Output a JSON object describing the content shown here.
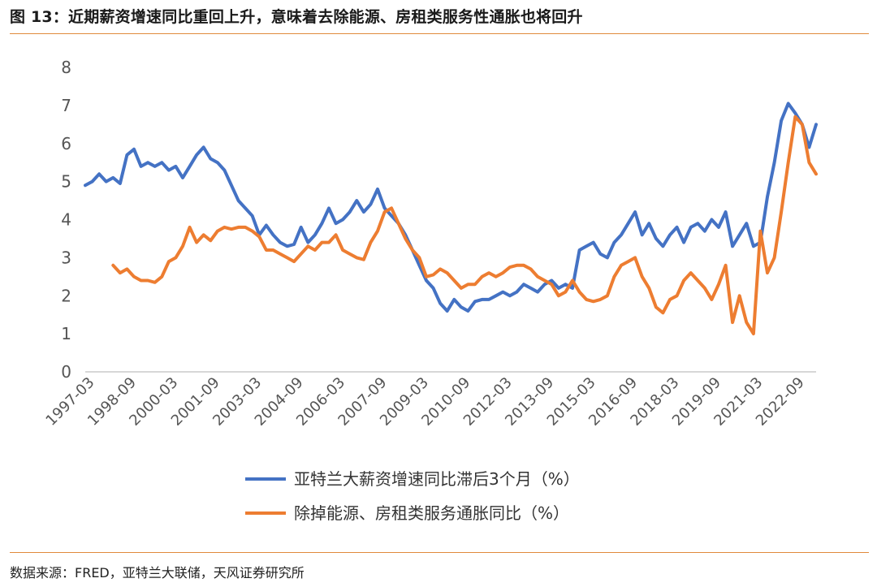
{
  "header": {
    "title": "图 13：近期薪资增速同比重回上升，意味着去除能源、房租类服务性通胀也将回升"
  },
  "footer": {
    "source": "数据来源：FRED，亚特兰大联储，天风证券研究所"
  },
  "chart_data": {
    "type": "line",
    "title": "",
    "xlabel": "",
    "ylabel": "",
    "ylim": [
      0,
      8
    ],
    "yticks": [
      "0",
      "1",
      "2",
      "3",
      "4",
      "5",
      "6",
      "7",
      "8"
    ],
    "x_ticks": [
      "1997-03",
      "1998-09",
      "2000-03",
      "2001-09",
      "2003-03",
      "2004-09",
      "2006-03",
      "2007-09",
      "2009-03",
      "2010-09",
      "2012-03",
      "2013-09",
      "2015-03",
      "2016-09",
      "2018-03",
      "2019-09",
      "2021-03",
      "2022-09"
    ],
    "x_range": [
      "1997-03",
      "2023-06"
    ],
    "grid": false,
    "legend_position": "bottom",
    "series": [
      {
        "name": "亚特兰大薪资增速同比滞后3个月（%）",
        "color": "#4472c4",
        "points": [
          [
            "1997-03",
            4.9
          ],
          [
            "1997-06",
            5.0
          ],
          [
            "1997-09",
            5.2
          ],
          [
            "1997-12",
            5.0
          ],
          [
            "1998-03",
            5.1
          ],
          [
            "1998-06",
            4.95
          ],
          [
            "1998-09",
            5.7
          ],
          [
            "1998-12",
            5.85
          ],
          [
            "1999-03",
            5.4
          ],
          [
            "1999-06",
            5.5
          ],
          [
            "1999-09",
            5.4
          ],
          [
            "1999-12",
            5.5
          ],
          [
            "2000-03",
            5.3
          ],
          [
            "2000-06",
            5.4
          ],
          [
            "2000-09",
            5.1
          ],
          [
            "2000-12",
            5.4
          ],
          [
            "2001-03",
            5.7
          ],
          [
            "2001-06",
            5.9
          ],
          [
            "2001-09",
            5.6
          ],
          [
            "2001-12",
            5.5
          ],
          [
            "2002-03",
            5.3
          ],
          [
            "2002-06",
            4.9
          ],
          [
            "2002-09",
            4.5
          ],
          [
            "2002-12",
            4.3
          ],
          [
            "2003-03",
            4.1
          ],
          [
            "2003-06",
            3.6
          ],
          [
            "2003-09",
            3.85
          ],
          [
            "2003-12",
            3.6
          ],
          [
            "2004-03",
            3.4
          ],
          [
            "2004-06",
            3.3
          ],
          [
            "2004-09",
            3.35
          ],
          [
            "2004-12",
            3.8
          ],
          [
            "2005-03",
            3.4
          ],
          [
            "2005-06",
            3.6
          ],
          [
            "2005-09",
            3.9
          ],
          [
            "2005-12",
            4.3
          ],
          [
            "2006-03",
            3.9
          ],
          [
            "2006-06",
            4.0
          ],
          [
            "2006-09",
            4.2
          ],
          [
            "2006-12",
            4.5
          ],
          [
            "2007-03",
            4.2
          ],
          [
            "2007-06",
            4.4
          ],
          [
            "2007-09",
            4.8
          ],
          [
            "2007-12",
            4.3
          ],
          [
            "2008-03",
            4.1
          ],
          [
            "2008-06",
            3.9
          ],
          [
            "2008-09",
            3.6
          ],
          [
            "2008-12",
            3.2
          ],
          [
            "2009-03",
            2.8
          ],
          [
            "2009-06",
            2.4
          ],
          [
            "2009-09",
            2.2
          ],
          [
            "2009-12",
            1.8
          ],
          [
            "2010-03",
            1.6
          ],
          [
            "2010-06",
            1.9
          ],
          [
            "2010-09",
            1.7
          ],
          [
            "2010-12",
            1.6
          ],
          [
            "2011-03",
            1.85
          ],
          [
            "2011-06",
            1.9
          ],
          [
            "2011-09",
            1.9
          ],
          [
            "2011-12",
            2.0
          ],
          [
            "2012-03",
            2.1
          ],
          [
            "2012-06",
            2.0
          ],
          [
            "2012-09",
            2.1
          ],
          [
            "2012-12",
            2.3
          ],
          [
            "2013-03",
            2.2
          ],
          [
            "2013-06",
            2.1
          ],
          [
            "2013-09",
            2.3
          ],
          [
            "2013-12",
            2.4
          ],
          [
            "2014-03",
            2.2
          ],
          [
            "2014-06",
            2.3
          ],
          [
            "2014-09",
            2.2
          ],
          [
            "2014-12",
            3.2
          ],
          [
            "2015-03",
            3.3
          ],
          [
            "2015-06",
            3.4
          ],
          [
            "2015-09",
            3.1
          ],
          [
            "2015-12",
            3.0
          ],
          [
            "2016-03",
            3.4
          ],
          [
            "2016-06",
            3.6
          ],
          [
            "2016-09",
            3.9
          ],
          [
            "2016-12",
            4.2
          ],
          [
            "2017-03",
            3.6
          ],
          [
            "2017-06",
            3.9
          ],
          [
            "2017-09",
            3.5
          ],
          [
            "2017-12",
            3.3
          ],
          [
            "2018-03",
            3.6
          ],
          [
            "2018-06",
            3.8
          ],
          [
            "2018-09",
            3.4
          ],
          [
            "2018-12",
            3.8
          ],
          [
            "2019-03",
            3.9
          ],
          [
            "2019-06",
            3.7
          ],
          [
            "2019-09",
            4.0
          ],
          [
            "2019-12",
            3.8
          ],
          [
            "2020-03",
            4.2
          ],
          [
            "2020-06",
            3.3
          ],
          [
            "2020-09",
            3.6
          ],
          [
            "2020-12",
            3.9
          ],
          [
            "2021-03",
            3.3
          ],
          [
            "2021-06",
            3.4
          ],
          [
            "2021-09",
            4.6
          ],
          [
            "2021-12",
            5.5
          ],
          [
            "2022-03",
            6.6
          ],
          [
            "2022-06",
            7.05
          ],
          [
            "2022-09",
            6.8
          ],
          [
            "2022-12",
            6.5
          ],
          [
            "2023-03",
            5.9
          ],
          [
            "2023-06",
            6.5
          ]
        ]
      },
      {
        "name": "除掉能源、房租类服务通胀同比（%）",
        "color": "#ed7d31",
        "points": [
          [
            "1998-03",
            2.8
          ],
          [
            "1998-06",
            2.6
          ],
          [
            "1998-09",
            2.7
          ],
          [
            "1998-12",
            2.5
          ],
          [
            "1999-03",
            2.4
          ],
          [
            "1999-06",
            2.4
          ],
          [
            "1999-09",
            2.35
          ],
          [
            "1999-12",
            2.5
          ],
          [
            "2000-03",
            2.9
          ],
          [
            "2000-06",
            3.0
          ],
          [
            "2000-09",
            3.3
          ],
          [
            "2000-12",
            3.8
          ],
          [
            "2001-03",
            3.4
          ],
          [
            "2001-06",
            3.6
          ],
          [
            "2001-09",
            3.45
          ],
          [
            "2001-12",
            3.7
          ],
          [
            "2002-03",
            3.8
          ],
          [
            "2002-06",
            3.75
          ],
          [
            "2002-09",
            3.8
          ],
          [
            "2002-12",
            3.8
          ],
          [
            "2003-03",
            3.7
          ],
          [
            "2003-06",
            3.55
          ],
          [
            "2003-09",
            3.2
          ],
          [
            "2003-12",
            3.2
          ],
          [
            "2004-03",
            3.1
          ],
          [
            "2004-06",
            3.0
          ],
          [
            "2004-09",
            2.9
          ],
          [
            "2004-12",
            3.1
          ],
          [
            "2005-03",
            3.3
          ],
          [
            "2005-06",
            3.2
          ],
          [
            "2005-09",
            3.4
          ],
          [
            "2005-12",
            3.4
          ],
          [
            "2006-03",
            3.6
          ],
          [
            "2006-06",
            3.2
          ],
          [
            "2006-09",
            3.1
          ],
          [
            "2006-12",
            3.0
          ],
          [
            "2007-03",
            2.95
          ],
          [
            "2007-06",
            3.4
          ],
          [
            "2007-09",
            3.7
          ],
          [
            "2007-12",
            4.2
          ],
          [
            "2008-03",
            4.3
          ],
          [
            "2008-06",
            3.9
          ],
          [
            "2008-09",
            3.5
          ],
          [
            "2008-12",
            3.2
          ],
          [
            "2009-03",
            3.0
          ],
          [
            "2009-06",
            2.5
          ],
          [
            "2009-09",
            2.55
          ],
          [
            "2009-12",
            2.7
          ],
          [
            "2010-03",
            2.6
          ],
          [
            "2010-06",
            2.4
          ],
          [
            "2010-09",
            2.2
          ],
          [
            "2010-12",
            2.3
          ],
          [
            "2011-03",
            2.3
          ],
          [
            "2011-06",
            2.5
          ],
          [
            "2011-09",
            2.6
          ],
          [
            "2011-12",
            2.5
          ],
          [
            "2012-03",
            2.6
          ],
          [
            "2012-06",
            2.75
          ],
          [
            "2012-09",
            2.8
          ],
          [
            "2012-12",
            2.8
          ],
          [
            "2013-03",
            2.7
          ],
          [
            "2013-06",
            2.5
          ],
          [
            "2013-09",
            2.4
          ],
          [
            "2013-12",
            2.3
          ],
          [
            "2014-03",
            2.0
          ],
          [
            "2014-06",
            2.1
          ],
          [
            "2014-09",
            2.4
          ],
          [
            "2014-12",
            2.1
          ],
          [
            "2015-03",
            1.9
          ],
          [
            "2015-06",
            1.85
          ],
          [
            "2015-09",
            1.9
          ],
          [
            "2015-12",
            2.0
          ],
          [
            "2016-03",
            2.5
          ],
          [
            "2016-06",
            2.8
          ],
          [
            "2016-09",
            2.9
          ],
          [
            "2016-12",
            3.0
          ],
          [
            "2017-03",
            2.5
          ],
          [
            "2017-06",
            2.2
          ],
          [
            "2017-09",
            1.7
          ],
          [
            "2017-12",
            1.55
          ],
          [
            "2018-03",
            1.9
          ],
          [
            "2018-06",
            2.0
          ],
          [
            "2018-09",
            2.4
          ],
          [
            "2018-12",
            2.6
          ],
          [
            "2019-03",
            2.4
          ],
          [
            "2019-06",
            2.2
          ],
          [
            "2019-09",
            1.9
          ],
          [
            "2019-12",
            2.3
          ],
          [
            "2020-03",
            2.8
          ],
          [
            "2020-06",
            1.3
          ],
          [
            "2020-09",
            2.0
          ],
          [
            "2020-12",
            1.3
          ],
          [
            "2021-03",
            1.0
          ],
          [
            "2021-06",
            3.7
          ],
          [
            "2021-09",
            2.6
          ],
          [
            "2021-12",
            3.0
          ],
          [
            "2022-03",
            4.2
          ],
          [
            "2022-06",
            5.5
          ],
          [
            "2022-09",
            6.7
          ],
          [
            "2022-12",
            6.5
          ],
          [
            "2023-03",
            5.5
          ],
          [
            "2023-06",
            5.2
          ]
        ]
      }
    ]
  }
}
